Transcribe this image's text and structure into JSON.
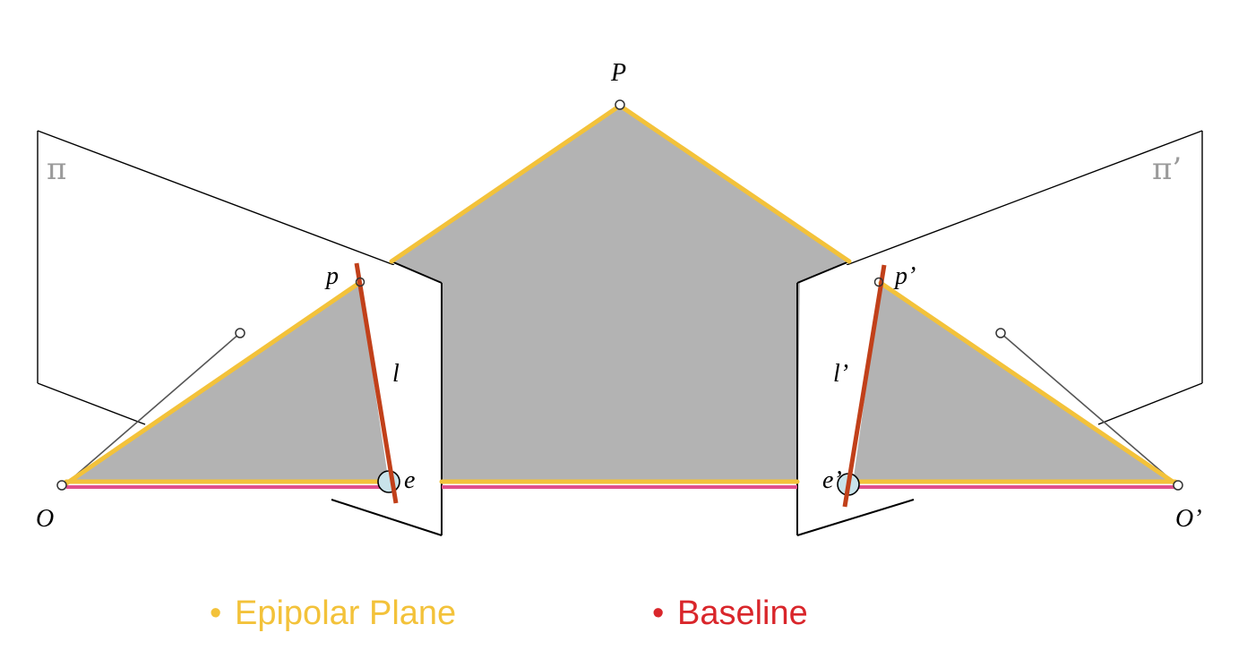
{
  "diagram": {
    "labels": {
      "P": "P",
      "p": "p",
      "p_prime": "p’",
      "l": "l",
      "l_prime": "l’",
      "e": "e",
      "e_prime": "e’",
      "O": "O",
      "O_prime": "O’",
      "pi": "π",
      "pi_prime": "π’"
    },
    "legend": {
      "bullet": "•",
      "epipolar_plane": "Epipolar Plane",
      "baseline": "Baseline"
    },
    "colors": {
      "plane_fill": "#b3b3b3",
      "epipolar_plane": "#f3c23a",
      "baseline": "#e0508c",
      "epipolar_line": "#c1401a",
      "baseline_legend": "#d9262b",
      "epipole_fill": "#c9e3ea"
    }
  }
}
